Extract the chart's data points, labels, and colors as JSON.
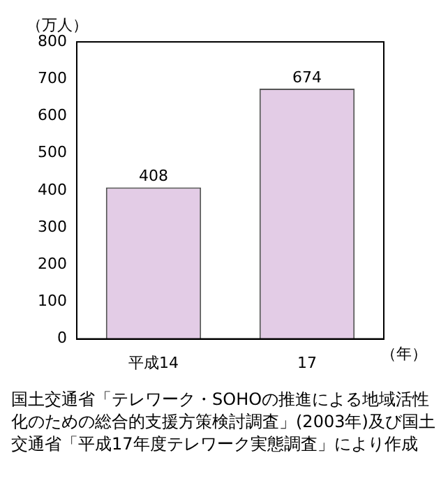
{
  "chart_data": {
    "type": "bar",
    "ylabel": "（万人）",
    "xlabel": "（年）",
    "categories": [
      "平成14",
      "17"
    ],
    "values": [
      408,
      674
    ],
    "color": "#e3cce6",
    "ylim": [
      0,
      800
    ],
    "yticks": [
      0,
      100,
      200,
      300,
      400,
      500,
      600,
      700,
      800
    ],
    "grid": false,
    "data_labels": true,
    "annotations": [
      "国土交通省「テレワーク・SOHOの推進による地域活性化のための総合的支援方策検討調査」(2003年)及び国土交通省「平成17年度テレワーク実態調査」により作成"
    ]
  }
}
